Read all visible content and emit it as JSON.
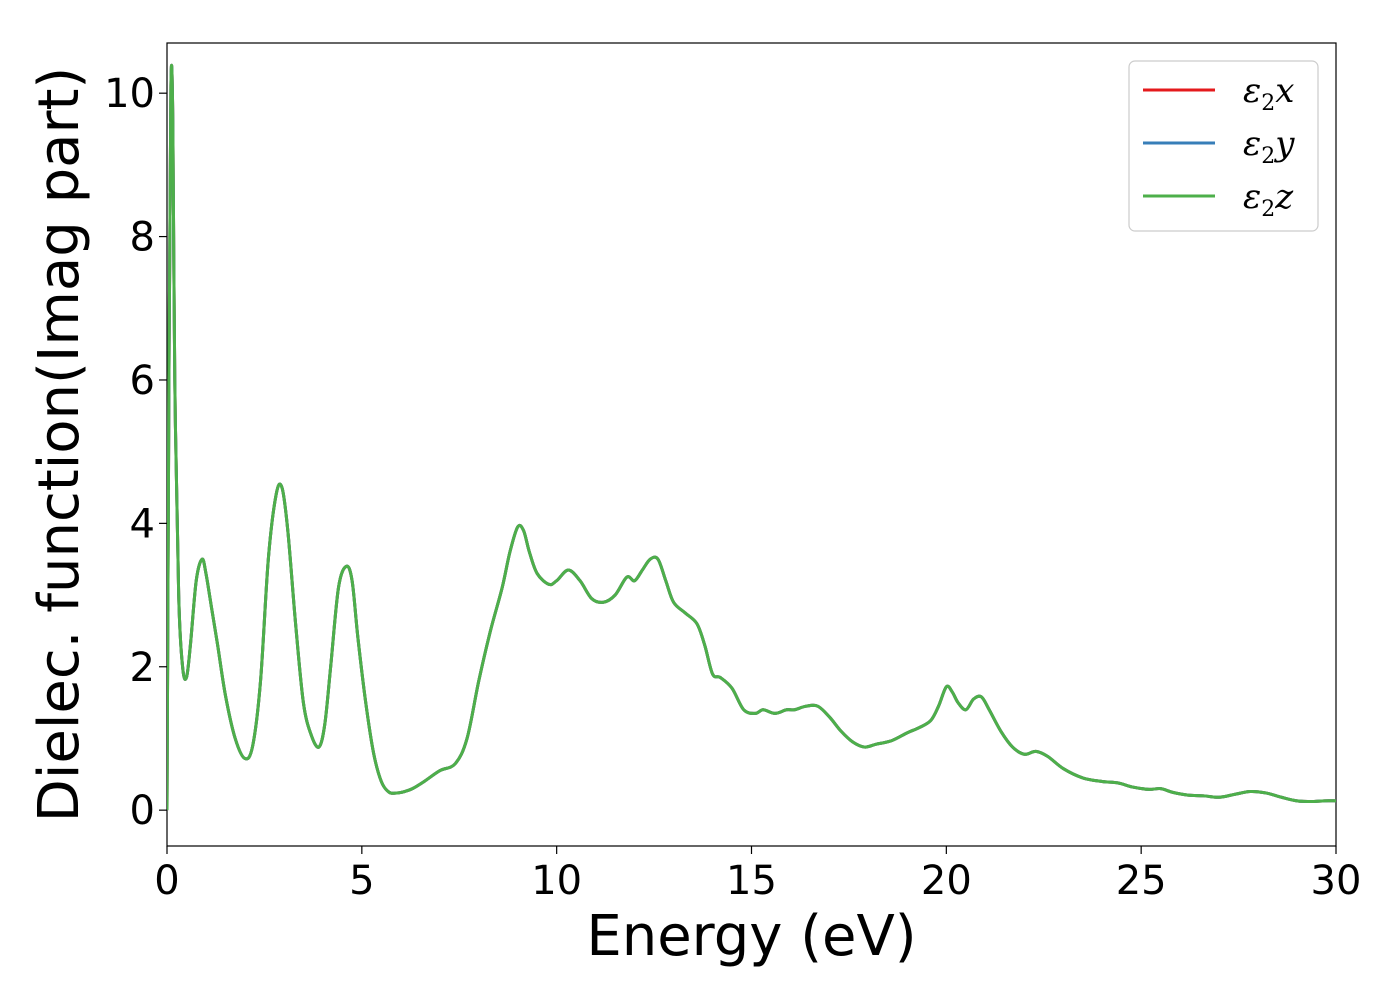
{
  "chart_data": {
    "type": "line",
    "xlabel": "Energy (eV)",
    "ylabel": "Dielec. function(Imag part)",
    "xlim": [
      0,
      30
    ],
    "ylim": [
      -0.5,
      10.7
    ],
    "xticks": [
      "0",
      "5",
      "10",
      "15",
      "20",
      "25",
      "30"
    ],
    "yticks": [
      "0",
      "2",
      "4",
      "6",
      "8",
      "10"
    ],
    "grid": false,
    "legend_position": "top-right",
    "series": [
      {
        "name": "ε2x",
        "legend_symbol": "ε",
        "legend_sub": "2",
        "legend_var": "x",
        "color": "#e41a1c"
      },
      {
        "name": "ε2y",
        "legend_symbol": "ε",
        "legend_sub": "2",
        "legend_var": "y",
        "color": "#377eb8"
      },
      {
        "name": "ε2z",
        "legend_symbol": "ε",
        "legend_sub": "2",
        "legend_var": "z",
        "color": "#4daf4a"
      }
    ],
    "x": [
      0,
      0.05,
      0.1,
      0.15,
      0.2,
      0.3,
      0.4,
      0.5,
      0.6,
      0.75,
      0.9,
      1.0,
      1.15,
      1.3,
      1.5,
      1.75,
      2.0,
      2.2,
      2.4,
      2.6,
      2.8,
      2.95,
      3.1,
      3.3,
      3.5,
      3.7,
      3.9,
      4.05,
      4.2,
      4.4,
      4.6,
      4.75,
      4.9,
      5.1,
      5.3,
      5.5,
      5.7,
      5.9,
      6.1,
      6.3,
      6.6,
      7.0,
      7.4,
      7.7,
      8.0,
      8.3,
      8.6,
      8.8,
      9.0,
      9.15,
      9.3,
      9.5,
      9.8,
      10.0,
      10.3,
      10.6,
      10.9,
      11.2,
      11.5,
      11.8,
      12.0,
      12.2,
      12.4,
      12.6,
      12.8,
      13.0,
      13.3,
      13.6,
      13.8,
      14.0,
      14.2,
      14.5,
      14.8,
      15.1,
      15.3,
      15.6,
      15.9,
      16.1,
      16.4,
      16.7,
      17.0,
      17.3,
      17.6,
      17.9,
      18.2,
      18.6,
      19.0,
      19.3,
      19.6,
      19.8,
      20.0,
      20.15,
      20.3,
      20.5,
      20.7,
      20.9,
      21.1,
      21.4,
      21.7,
      22.0,
      22.3,
      22.6,
      23.0,
      23.5,
      24.0,
      24.4,
      24.8,
      25.2,
      25.5,
      25.8,
      26.2,
      26.6,
      27.0,
      27.4,
      27.8,
      28.2,
      28.6,
      29.0,
      29.4,
      29.7,
      30.0
    ],
    "y": [
      0.0,
      6.0,
      10.1,
      9.6,
      6.0,
      3.0,
      2.0,
      1.85,
      2.3,
      3.2,
      3.5,
      3.3,
      2.8,
      2.3,
      1.6,
      1.0,
      0.72,
      0.9,
      1.8,
      3.5,
      4.4,
      4.5,
      3.9,
      2.6,
      1.5,
      1.05,
      0.88,
      1.2,
      2.0,
      3.1,
      3.4,
      3.2,
      2.4,
      1.5,
      0.8,
      0.4,
      0.25,
      0.24,
      0.26,
      0.3,
      0.4,
      0.55,
      0.65,
      1.0,
      1.8,
      2.5,
      3.1,
      3.6,
      3.95,
      3.9,
      3.6,
      3.3,
      3.15,
      3.2,
      3.35,
      3.2,
      2.95,
      2.9,
      3.0,
      3.25,
      3.2,
      3.35,
      3.5,
      3.5,
      3.2,
      2.9,
      2.75,
      2.6,
      2.3,
      1.9,
      1.85,
      1.7,
      1.4,
      1.35,
      1.4,
      1.35,
      1.4,
      1.4,
      1.45,
      1.45,
      1.3,
      1.1,
      0.95,
      0.88,
      0.92,
      0.97,
      1.08,
      1.15,
      1.25,
      1.45,
      1.72,
      1.65,
      1.5,
      1.4,
      1.55,
      1.58,
      1.4,
      1.1,
      0.88,
      0.78,
      0.82,
      0.75,
      0.58,
      0.45,
      0.4,
      0.38,
      0.32,
      0.29,
      0.3,
      0.25,
      0.21,
      0.2,
      0.18,
      0.22,
      0.26,
      0.24,
      0.18,
      0.13,
      0.12,
      0.13,
      0.13
    ]
  }
}
